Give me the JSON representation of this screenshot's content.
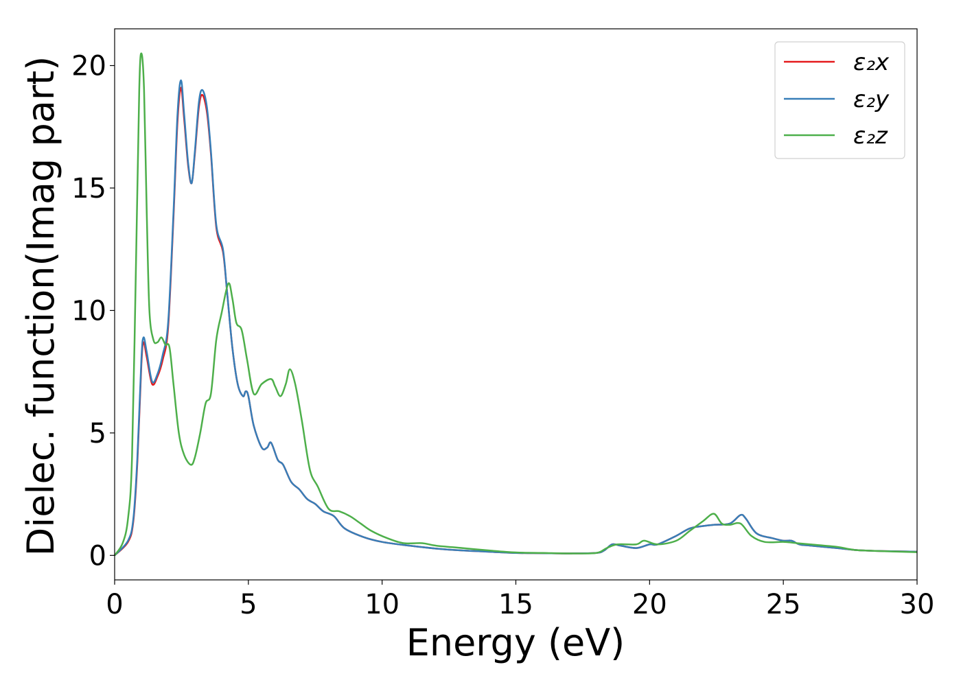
{
  "chart_data": {
    "type": "line",
    "title": "",
    "xlabel": "Energy (eV)",
    "ylabel": "Dielec. function(Imag part)",
    "xlim": [
      0,
      30
    ],
    "ylim": [
      -1,
      21.5
    ],
    "xticks": [
      0,
      5,
      10,
      15,
      20,
      25,
      30
    ],
    "yticks": [
      0,
      5,
      10,
      15,
      20
    ],
    "grid": false,
    "legend_position": "top-right",
    "series": [
      {
        "name": "ε₂x",
        "color": "#e41a1c",
        "points": [
          [
            0,
            0
          ],
          [
            0.5,
            0.55
          ],
          [
            0.7,
            1.4
          ],
          [
            0.85,
            3.8
          ],
          [
            1.0,
            7.8
          ],
          [
            1.08,
            8.7
          ],
          [
            1.2,
            8.1
          ],
          [
            1.4,
            7.0
          ],
          [
            1.6,
            7.3
          ],
          [
            1.8,
            8.0
          ],
          [
            2.0,
            9.3
          ],
          [
            2.2,
            13.8
          ],
          [
            2.35,
            17.7
          ],
          [
            2.48,
            19.1
          ],
          [
            2.6,
            17.8
          ],
          [
            2.75,
            15.9
          ],
          [
            2.88,
            15.2
          ],
          [
            3.0,
            16.4
          ],
          [
            3.15,
            18.3
          ],
          [
            3.28,
            18.8
          ],
          [
            3.45,
            18.1
          ],
          [
            3.6,
            16.4
          ],
          [
            3.8,
            13.4
          ],
          [
            4.05,
            12.4
          ],
          [
            4.2,
            10.8
          ],
          [
            4.4,
            8.5
          ],
          [
            4.6,
            7.0
          ],
          [
            4.8,
            6.5
          ],
          [
            4.9,
            6.7
          ],
          [
            5.0,
            6.5
          ],
          [
            5.2,
            5.3
          ],
          [
            5.5,
            4.4
          ],
          [
            5.7,
            4.4
          ],
          [
            5.85,
            4.6
          ],
          [
            6.1,
            3.9
          ],
          [
            6.3,
            3.7
          ],
          [
            6.6,
            3.0
          ],
          [
            6.9,
            2.7
          ],
          [
            7.2,
            2.3
          ],
          [
            7.5,
            2.1
          ],
          [
            7.8,
            1.8
          ],
          [
            8.2,
            1.6
          ],
          [
            8.6,
            1.1
          ],
          [
            9.3,
            0.75
          ],
          [
            10,
            0.55
          ],
          [
            11,
            0.4
          ],
          [
            12,
            0.28
          ],
          [
            13,
            0.2
          ],
          [
            14,
            0.15
          ],
          [
            15,
            0.1
          ],
          [
            16,
            0.09
          ],
          [
            17,
            0.08
          ],
          [
            18,
            0.1
          ],
          [
            18.3,
            0.2
          ],
          [
            18.6,
            0.45
          ],
          [
            18.9,
            0.4
          ],
          [
            19.5,
            0.3
          ],
          [
            20,
            0.45
          ],
          [
            20.3,
            0.45
          ],
          [
            21,
            0.8
          ],
          [
            21.5,
            1.1
          ],
          [
            22,
            1.2
          ],
          [
            22.4,
            1.25
          ],
          [
            23,
            1.3
          ],
          [
            23.4,
            1.65
          ],
          [
            23.6,
            1.5
          ],
          [
            24,
            0.9
          ],
          [
            24.6,
            0.7
          ],
          [
            25,
            0.6
          ],
          [
            25.3,
            0.6
          ],
          [
            25.6,
            0.45
          ],
          [
            26,
            0.4
          ],
          [
            27,
            0.3
          ],
          [
            28,
            0.2
          ],
          [
            30,
            0.15
          ]
        ]
      },
      {
        "name": "ε₂y",
        "color": "#377eb8",
        "points": [
          [
            0,
            0
          ],
          [
            0.5,
            0.6
          ],
          [
            0.7,
            1.5
          ],
          [
            0.85,
            4.0
          ],
          [
            1.0,
            8.0
          ],
          [
            1.08,
            8.9
          ],
          [
            1.2,
            8.3
          ],
          [
            1.4,
            7.1
          ],
          [
            1.6,
            7.4
          ],
          [
            1.8,
            8.2
          ],
          [
            2.0,
            9.5
          ],
          [
            2.2,
            14.0
          ],
          [
            2.35,
            18.0
          ],
          [
            2.48,
            19.4
          ],
          [
            2.6,
            18.0
          ],
          [
            2.75,
            16.0
          ],
          [
            2.88,
            15.2
          ],
          [
            3.0,
            16.5
          ],
          [
            3.15,
            18.5
          ],
          [
            3.28,
            19.0
          ],
          [
            3.45,
            18.3
          ],
          [
            3.6,
            16.5
          ],
          [
            3.8,
            13.5
          ],
          [
            4.05,
            12.5
          ],
          [
            4.2,
            10.8
          ],
          [
            4.4,
            8.5
          ],
          [
            4.6,
            7.0
          ],
          [
            4.8,
            6.5
          ],
          [
            4.9,
            6.7
          ],
          [
            5.0,
            6.5
          ],
          [
            5.2,
            5.3
          ],
          [
            5.5,
            4.4
          ],
          [
            5.7,
            4.4
          ],
          [
            5.85,
            4.6
          ],
          [
            6.1,
            3.9
          ],
          [
            6.3,
            3.7
          ],
          [
            6.6,
            3.0
          ],
          [
            6.9,
            2.7
          ],
          [
            7.2,
            2.3
          ],
          [
            7.5,
            2.1
          ],
          [
            7.8,
            1.8
          ],
          [
            8.2,
            1.6
          ],
          [
            8.6,
            1.1
          ],
          [
            9.3,
            0.75
          ],
          [
            10,
            0.55
          ],
          [
            11,
            0.4
          ],
          [
            12,
            0.28
          ],
          [
            13,
            0.2
          ],
          [
            14,
            0.15
          ],
          [
            15,
            0.1
          ],
          [
            16,
            0.09
          ],
          [
            17,
            0.08
          ],
          [
            18,
            0.1
          ],
          [
            18.3,
            0.2
          ],
          [
            18.6,
            0.45
          ],
          [
            18.9,
            0.4
          ],
          [
            19.5,
            0.3
          ],
          [
            20,
            0.45
          ],
          [
            20.3,
            0.45
          ],
          [
            21,
            0.8
          ],
          [
            21.5,
            1.1
          ],
          [
            22,
            1.2
          ],
          [
            22.4,
            1.25
          ],
          [
            23,
            1.3
          ],
          [
            23.4,
            1.65
          ],
          [
            23.6,
            1.5
          ],
          [
            24,
            0.9
          ],
          [
            24.6,
            0.7
          ],
          [
            25,
            0.6
          ],
          [
            25.3,
            0.6
          ],
          [
            25.6,
            0.45
          ],
          [
            26,
            0.4
          ],
          [
            27,
            0.3
          ],
          [
            28,
            0.2
          ],
          [
            30,
            0.15
          ]
        ]
      },
      {
        "name": "ε₂z",
        "color": "#4daf4a",
        "points": [
          [
            0,
            0
          ],
          [
            0.3,
            0.5
          ],
          [
            0.5,
            1.5
          ],
          [
            0.65,
            4
          ],
          [
            0.8,
            12
          ],
          [
            0.92,
            19
          ],
          [
            1.0,
            20.5
          ],
          [
            1.1,
            19
          ],
          [
            1.2,
            14
          ],
          [
            1.3,
            10
          ],
          [
            1.45,
            8.8
          ],
          [
            1.6,
            8.7
          ],
          [
            1.75,
            8.9
          ],
          [
            1.9,
            8.6
          ],
          [
            2.05,
            8.5
          ],
          [
            2.2,
            7
          ],
          [
            2.4,
            5
          ],
          [
            2.6,
            4.1
          ],
          [
            2.85,
            3.7
          ],
          [
            3.0,
            4.0
          ],
          [
            3.2,
            5
          ],
          [
            3.4,
            6.2
          ],
          [
            3.6,
            6.6
          ],
          [
            3.8,
            8.8
          ],
          [
            4.0,
            9.9
          ],
          [
            4.25,
            11.1
          ],
          [
            4.4,
            10.5
          ],
          [
            4.55,
            9.5
          ],
          [
            4.75,
            9.2
          ],
          [
            4.95,
            8
          ],
          [
            5.2,
            6.6
          ],
          [
            5.5,
            7.0
          ],
          [
            5.85,
            7.2
          ],
          [
            6.0,
            6.9
          ],
          [
            6.2,
            6.5
          ],
          [
            6.4,
            7.0
          ],
          [
            6.55,
            7.6
          ],
          [
            6.75,
            7.0
          ],
          [
            7.0,
            5.5
          ],
          [
            7.3,
            3.5
          ],
          [
            7.6,
            2.8
          ],
          [
            8.0,
            1.9
          ],
          [
            8.4,
            1.8
          ],
          [
            8.8,
            1.6
          ],
          [
            9.2,
            1.3
          ],
          [
            9.6,
            1.0
          ],
          [
            10.2,
            0.7
          ],
          [
            10.8,
            0.5
          ],
          [
            11.5,
            0.5
          ],
          [
            12,
            0.4
          ],
          [
            13,
            0.3
          ],
          [
            14,
            0.2
          ],
          [
            15,
            0.12
          ],
          [
            16,
            0.1
          ],
          [
            17,
            0.08
          ],
          [
            18,
            0.1
          ],
          [
            18.4,
            0.3
          ],
          [
            18.8,
            0.45
          ],
          [
            19.5,
            0.45
          ],
          [
            19.8,
            0.6
          ],
          [
            20.3,
            0.45
          ],
          [
            21,
            0.6
          ],
          [
            21.5,
            1.0
          ],
          [
            22,
            1.4
          ],
          [
            22.4,
            1.7
          ],
          [
            22.7,
            1.3
          ],
          [
            23.0,
            1.25
          ],
          [
            23.4,
            1.3
          ],
          [
            23.8,
            0.8
          ],
          [
            24.3,
            0.55
          ],
          [
            25,
            0.55
          ],
          [
            25.5,
            0.5
          ],
          [
            26,
            0.45
          ],
          [
            27,
            0.35
          ],
          [
            27.5,
            0.25
          ],
          [
            28,
            0.2
          ],
          [
            30,
            0.13
          ]
        ]
      }
    ]
  }
}
